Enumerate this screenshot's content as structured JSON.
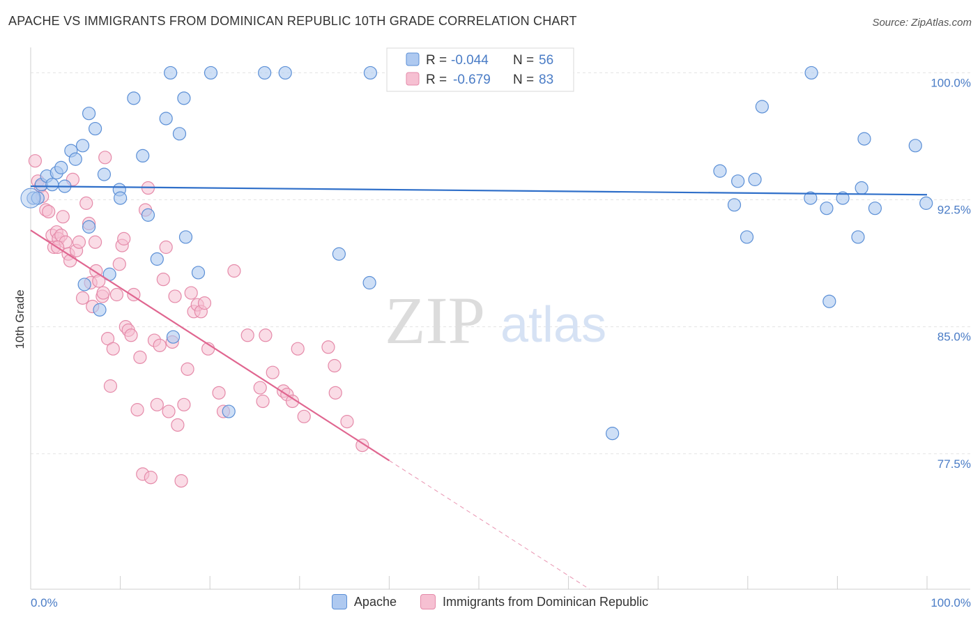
{
  "title": "APACHE VS IMMIGRANTS FROM DOMINICAN REPUBLIC 10TH GRADE CORRELATION CHART",
  "source": "Source: ZipAtlas.com",
  "colors": {
    "apache_fill": "#aec9f0",
    "apache_stroke": "#5b8fd6",
    "apache_line": "#2f6fc9",
    "dominican_fill": "#f6c0d2",
    "dominican_stroke": "#e58aa9",
    "dominican_line": "#e06690",
    "tick_text": "#4a7cc6",
    "grid": "#e3e3e3"
  },
  "stats_box": {
    "apache": {
      "r_label": "R =",
      "r_value": "-0.044",
      "n_label": "N =",
      "n_value": "56"
    },
    "dominican": {
      "r_label": "R =",
      "r_value": "-0.679",
      "n_label": "N =",
      "n_value": "83"
    }
  },
  "watermark": {
    "zip": "ZIP",
    "atlas": "atlas"
  },
  "legend": {
    "apache_label": "Apache",
    "dominican_label": "Immigrants from Dominican Republic"
  },
  "chart_data": {
    "type": "scatter",
    "xlabel": "",
    "ylabel": "10th Grade",
    "xlim": [
      0,
      100
    ],
    "ylim": [
      69.5,
      101.5
    ],
    "x_tick_labels": [
      {
        "value": 0,
        "label": "0.0%"
      },
      {
        "value": 100,
        "label": "100.0%"
      }
    ],
    "y_tick_labels": [
      {
        "value": 100,
        "label": "100.0%"
      },
      {
        "value": 92.5,
        "label": "92.5%"
      },
      {
        "value": 85,
        "label": "85.0%"
      },
      {
        "value": 77.5,
        "label": "77.5%"
      }
    ],
    "series": [
      {
        "name": "Apache",
        "r": -0.044,
        "n": 56,
        "trend": {
          "x0": 0,
          "y0": 93.3,
          "x1": 100,
          "y1": 92.8
        },
        "points": [
          [
            0.3,
            92.6
          ],
          [
            0.8,
            92.6
          ],
          [
            1.2,
            93.4
          ],
          [
            1.8,
            93.9
          ],
          [
            2.4,
            93.4
          ],
          [
            2.9,
            94.1
          ],
          [
            3.4,
            94.4
          ],
          [
            3.8,
            93.3
          ],
          [
            4.5,
            95.4
          ],
          [
            5.0,
            94.9
          ],
          [
            5.8,
            95.7
          ],
          [
            6.5,
            97.6
          ],
          [
            7.2,
            96.7
          ],
          [
            8.2,
            94.0
          ],
          [
            9.9,
            93.1
          ],
          [
            11.5,
            98.5
          ],
          [
            12.5,
            95.1
          ],
          [
            13.1,
            91.6
          ],
          [
            14.1,
            89.0
          ],
          [
            15.1,
            97.3
          ],
          [
            15.6,
            100.0
          ],
          [
            16.6,
            96.4
          ],
          [
            17.1,
            98.5
          ],
          [
            17.3,
            90.3
          ],
          [
            18.7,
            88.2
          ],
          [
            20.1,
            100.0
          ],
          [
            22.1,
            80.0
          ],
          [
            26.1,
            100.0
          ],
          [
            28.4,
            100.0
          ],
          [
            34.4,
            89.3
          ],
          [
            37.8,
            87.6
          ],
          [
            37.9,
            100.0
          ],
          [
            6.0,
            87.5
          ],
          [
            6.5,
            90.9
          ],
          [
            7.7,
            86.0
          ],
          [
            8.8,
            88.1
          ],
          [
            15.9,
            84.4
          ],
          [
            64.9,
            78.7
          ],
          [
            76.9,
            94.2
          ],
          [
            78.5,
            92.2
          ],
          [
            78.9,
            93.6
          ],
          [
            79.9,
            90.3
          ],
          [
            80.8,
            93.7
          ],
          [
            81.6,
            98.0
          ],
          [
            87.1,
            100.0
          ],
          [
            87.0,
            92.6
          ],
          [
            88.8,
            92.0
          ],
          [
            89.1,
            86.5
          ],
          [
            90.6,
            92.6
          ],
          [
            92.3,
            90.3
          ],
          [
            92.7,
            93.2
          ],
          [
            93.0,
            96.1
          ],
          [
            94.2,
            92.0
          ],
          [
            98.7,
            95.7
          ],
          [
            99.9,
            92.3
          ],
          [
            10.0,
            92.6
          ]
        ]
      },
      {
        "name": "Immigrants from Dominican Republic",
        "r": -0.679,
        "n": 83,
        "trend": {
          "x0": 0,
          "y0": 90.7,
          "x1": 40,
          "y1": 77.1
        },
        "trend_dashed": {
          "x0": 40,
          "y0": 77.1,
          "x1": 100,
          "y1": 56.7
        },
        "points": [
          [
            0.5,
            94.8
          ],
          [
            0.8,
            93.6
          ],
          [
            1.1,
            93.3
          ],
          [
            1.3,
            92.7
          ],
          [
            1.7,
            91.9
          ],
          [
            2.0,
            91.8
          ],
          [
            2.4,
            90.4
          ],
          [
            2.6,
            89.7
          ],
          [
            2.9,
            90.6
          ],
          [
            3.1,
            90.2
          ],
          [
            3.4,
            90.4
          ],
          [
            3.6,
            91.5
          ],
          [
            3.9,
            90.0
          ],
          [
            4.2,
            89.3
          ],
          [
            4.4,
            88.9
          ],
          [
            4.7,
            93.7
          ],
          [
            5.1,
            89.5
          ],
          [
            5.4,
            90.0
          ],
          [
            5.8,
            86.7
          ],
          [
            6.2,
            92.3
          ],
          [
            6.5,
            91.1
          ],
          [
            6.7,
            87.6
          ],
          [
            6.9,
            86.2
          ],
          [
            7.3,
            88.3
          ],
          [
            7.6,
            87.7
          ],
          [
            8.0,
            86.8
          ],
          [
            8.3,
            95.0
          ],
          [
            8.6,
            84.3
          ],
          [
            8.9,
            81.5
          ],
          [
            9.2,
            83.7
          ],
          [
            9.6,
            86.9
          ],
          [
            9.9,
            88.7
          ],
          [
            10.2,
            89.8
          ],
          [
            10.6,
            85.0
          ],
          [
            10.9,
            84.8
          ],
          [
            11.2,
            84.5
          ],
          [
            11.5,
            86.9
          ],
          [
            11.9,
            80.1
          ],
          [
            12.2,
            83.2
          ],
          [
            12.5,
            76.3
          ],
          [
            12.8,
            91.9
          ],
          [
            13.1,
            93.2
          ],
          [
            13.4,
            76.1
          ],
          [
            13.8,
            84.2
          ],
          [
            14.1,
            80.4
          ],
          [
            14.4,
            83.9
          ],
          [
            14.8,
            87.8
          ],
          [
            15.1,
            89.7
          ],
          [
            15.4,
            80.0
          ],
          [
            15.8,
            84.1
          ],
          [
            16.1,
            86.8
          ],
          [
            16.4,
            79.2
          ],
          [
            16.8,
            75.9
          ],
          [
            17.1,
            80.4
          ],
          [
            17.5,
            82.5
          ],
          [
            17.9,
            87.0
          ],
          [
            18.2,
            85.9
          ],
          [
            18.6,
            86.3
          ],
          [
            19.0,
            85.9
          ],
          [
            19.4,
            86.4
          ],
          [
            19.8,
            83.7
          ],
          [
            21.0,
            81.1
          ],
          [
            21.5,
            80.0
          ],
          [
            22.7,
            88.3
          ],
          [
            24.2,
            84.5
          ],
          [
            25.6,
            81.4
          ],
          [
            25.9,
            80.6
          ],
          [
            26.2,
            84.5
          ],
          [
            27.0,
            82.3
          ],
          [
            28.2,
            81.2
          ],
          [
            28.6,
            81.0
          ],
          [
            29.2,
            80.6
          ],
          [
            29.8,
            83.7
          ],
          [
            30.5,
            79.7
          ],
          [
            33.2,
            83.8
          ],
          [
            33.9,
            82.7
          ],
          [
            34.0,
            81.1
          ],
          [
            35.3,
            79.4
          ],
          [
            37.0,
            78.0
          ],
          [
            8.1,
            87.0
          ],
          [
            10.4,
            90.2
          ],
          [
            3.0,
            89.7
          ],
          [
            7.2,
            90.0
          ]
        ]
      }
    ]
  }
}
